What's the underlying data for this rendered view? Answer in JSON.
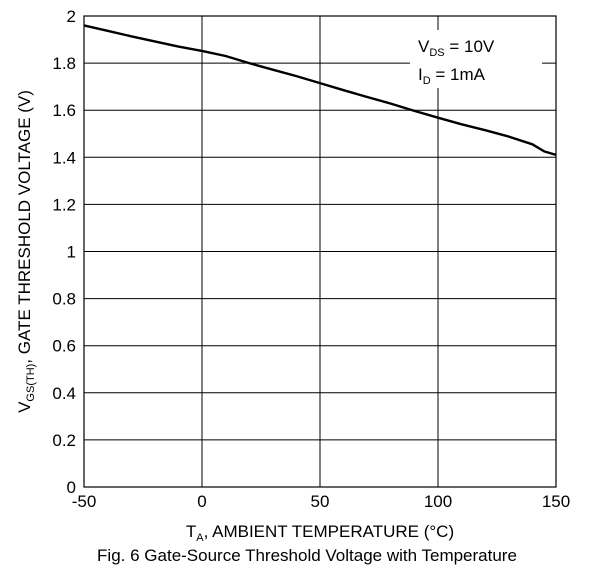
{
  "chart_data": {
    "type": "line",
    "caption": "Fig. 6 Gate-Source Threshold Voltage with Temperature",
    "xlabel": {
      "main": "T",
      "sub": "A",
      "rest": ", AMBIENT TEMPERATURE (°C)"
    },
    "ylabel": {
      "main": "V",
      "sub": "GS(TH)",
      "rest": ", GATE THRESHOLD VOLTAGE (V)"
    },
    "xlim": [
      -50,
      150
    ],
    "ylim": [
      0,
      2
    ],
    "xticks": [
      -50,
      0,
      50,
      100,
      150
    ],
    "yticks": [
      0,
      0.2,
      0.4,
      0.6,
      0.8,
      1,
      1.2,
      1.4,
      1.6,
      1.8,
      2
    ],
    "grid": true,
    "conditions": [
      {
        "main": "V",
        "sub": "DS",
        "rest": " = 10V"
      },
      {
        "main": "I",
        "sub": "D",
        "rest": " = 1mA"
      }
    ],
    "series": [
      {
        "x": [
          -50,
          -40,
          -30,
          -20,
          -10,
          0,
          10,
          20,
          30,
          40,
          50,
          60,
          70,
          80,
          90,
          100,
          110,
          120,
          130,
          140,
          145,
          150
        ],
        "y": [
          1.96,
          1.937,
          1.914,
          1.892,
          1.87,
          1.852,
          1.83,
          1.8,
          1.772,
          1.745,
          1.715,
          1.685,
          1.656,
          1.628,
          1.597,
          1.568,
          1.54,
          1.515,
          1.488,
          1.455,
          1.425,
          1.41
        ],
        "color": "#000000"
      }
    ]
  }
}
